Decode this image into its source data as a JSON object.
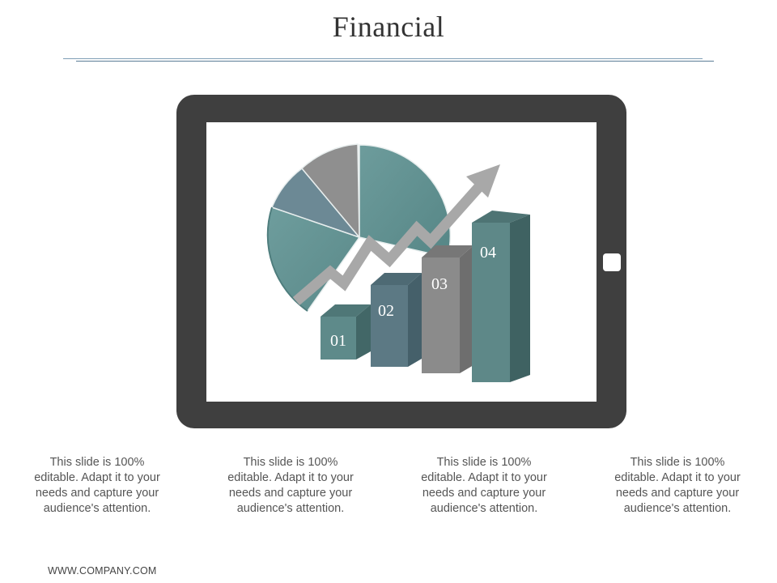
{
  "slide": {
    "title": "Financial",
    "footer": "WWW.COMPANY.COM"
  },
  "bars": [
    {
      "label": "01"
    },
    {
      "label": "02"
    },
    {
      "label": "03"
    },
    {
      "label": "04"
    }
  ],
  "captions": [
    "This slide is 100% editable. Adapt it to your needs and capture your audience's attention.",
    "This slide is 100% editable. Adapt it to your needs and capture your audience's attention.",
    "This slide is 100% editable. Adapt it to your needs and capture your audience's attention.",
    "This slide is 100% editable. Adapt it to your needs and capture your audience's attention."
  ],
  "colors": {
    "teal": "#5f8f8f",
    "slate": "#5f7f8b",
    "gray": "#8d8d8d",
    "tablet": "#3f3f3f",
    "arrow": "#a8a8a8"
  },
  "icons": {
    "device": "tablet-icon",
    "graphic": "pie-chart-icon",
    "trend": "trend-arrow-icon"
  }
}
